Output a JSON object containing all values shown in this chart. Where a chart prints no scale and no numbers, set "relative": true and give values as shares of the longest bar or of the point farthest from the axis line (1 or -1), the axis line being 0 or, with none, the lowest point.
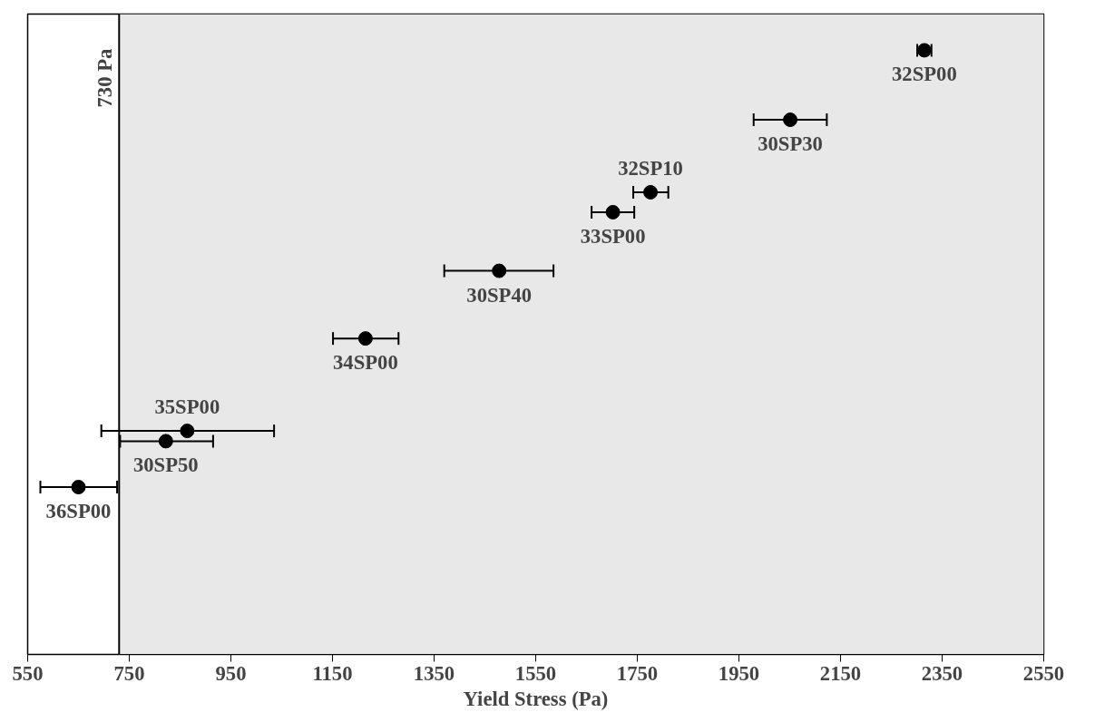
{
  "chart_data": {
    "type": "scatter",
    "relative": true,
    "xlabel": "Yield Stress (Pa)",
    "x": [
      650,
      822,
      864,
      1215,
      1478,
      1702,
      1776,
      2051,
      2315
    ],
    "values": [
      0.277,
      0.353,
      0.37,
      0.523,
      0.635,
      0.732,
      0.765,
      0.885,
      1
    ],
    "xerrors": [
      [
        575,
        726
      ],
      [
        732,
        915
      ],
      [
        695,
        1035
      ],
      [
        1151,
        1280
      ],
      [
        1370,
        1585
      ],
      [
        1660,
        1744
      ],
      [
        1742,
        1811
      ],
      [
        1979,
        2123
      ],
      [
        2301,
        2329
      ]
    ],
    "color": "#000000",
    "marker": "circle",
    "grid": false,
    "xlim": [
      550,
      2550
    ],
    "xticks": [
      550,
      750,
      950,
      1150,
      1350,
      1550,
      1750,
      1950,
      2150,
      2350,
      2550
    ],
    "ref_lines": [
      {
        "axis": "x",
        "value": 730,
        "label": "730 Pa",
        "color": "#000000"
      }
    ],
    "bands": [
      {
        "axis": "x",
        "from": 730,
        "to": 2550,
        "color": "#e8e8e8"
      }
    ],
    "annotations": [
      {
        "text": "36SP00",
        "x": 650,
        "y": 0.277
      },
      {
        "text": "30SP50",
        "x": 822,
        "y": 0.353
      },
      {
        "text": "35SP00",
        "x": 864,
        "y": 0.37
      },
      {
        "text": "34SP00",
        "x": 1215,
        "y": 0.523
      },
      {
        "text": "30SP40",
        "x": 1478,
        "y": 0.635
      },
      {
        "text": "33SP00",
        "x": 1702,
        "y": 0.732
      },
      {
        "text": "32SP10",
        "x": 1776,
        "y": 0.765
      },
      {
        "text": "30SP30",
        "x": 2051,
        "y": 0.885
      },
      {
        "text": "32SP00",
        "x": 2315,
        "y": 1
      }
    ]
  }
}
